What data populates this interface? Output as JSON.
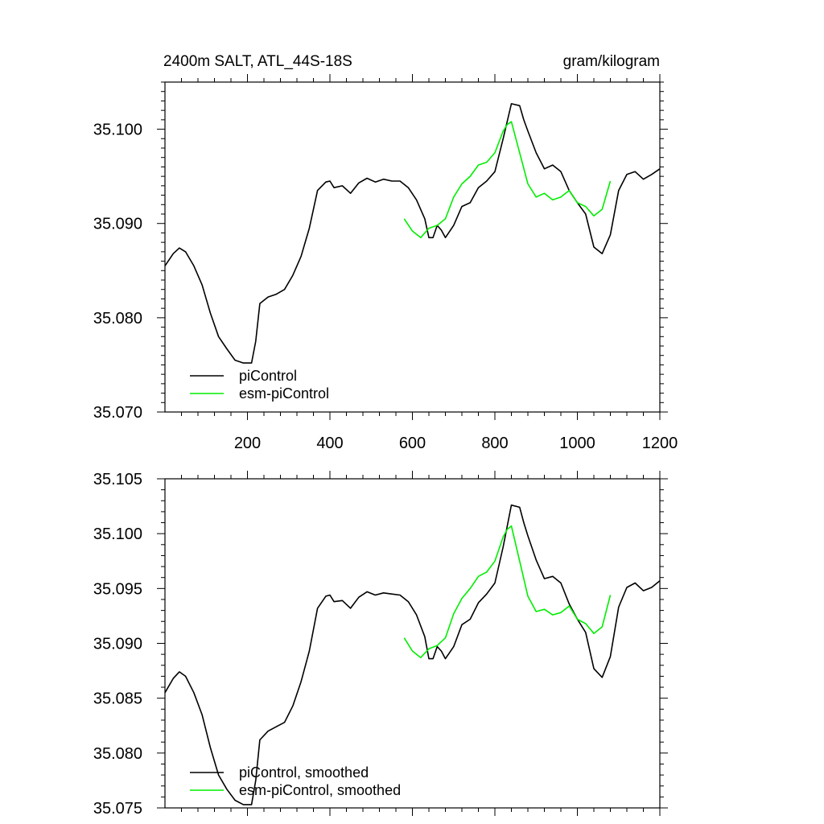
{
  "chart_data": [
    {
      "type": "line",
      "title": "2400m SALT, ATL_44S-18S",
      "units": "gram/kilogram",
      "xlim": [
        0,
        1200
      ],
      "ylim": [
        35.07,
        35.105
      ],
      "x_ticks": [
        200,
        400,
        600,
        800,
        1000,
        1200
      ],
      "x_tick_labels": [
        "200",
        "400",
        "600",
        "800",
        "1000",
        "1200"
      ],
      "y_ticks": [
        35.07,
        35.08,
        35.09,
        35.1
      ],
      "y_tick_labels": [
        "35.070",
        "35.080",
        "35.090",
        "35.100"
      ],
      "legend": [
        "piControl",
        "esm-piControl"
      ],
      "legend_position": "bottom-left",
      "series": [
        {
          "name": "piControl",
          "color": "#000000",
          "x": [
            0,
            20,
            35,
            50,
            70,
            90,
            110,
            130,
            150,
            170,
            190,
            210,
            220,
            230,
            250,
            270,
            290,
            310,
            330,
            350,
            370,
            390,
            400,
            410,
            430,
            450,
            470,
            490,
            510,
            530,
            550,
            570,
            590,
            610,
            630,
            640,
            650,
            660,
            670,
            680,
            700,
            720,
            740,
            760,
            780,
            800,
            820,
            840,
            860,
            870,
            880,
            900,
            920,
            940,
            960,
            980,
            1000,
            1020,
            1040,
            1060,
            1080,
            1100,
            1120,
            1140,
            1160,
            1180,
            1200
          ],
          "values": [
            35.0855,
            35.0868,
            35.0874,
            35.087,
            35.0855,
            35.0835,
            35.0805,
            35.078,
            35.0767,
            35.0755,
            35.0752,
            35.0752,
            35.0775,
            35.0815,
            35.0822,
            35.0825,
            35.083,
            35.0845,
            35.0865,
            35.0895,
            35.0935,
            35.0944,
            35.0945,
            35.0938,
            35.094,
            35.0932,
            35.0943,
            35.0948,
            35.0944,
            35.0947,
            35.0945,
            35.0945,
            35.0938,
            35.0925,
            35.0905,
            35.0885,
            35.0885,
            35.0898,
            35.0893,
            35.0885,
            35.0898,
            35.0918,
            35.0922,
            35.0938,
            35.0945,
            35.0955,
            35.099,
            35.1027,
            35.1025,
            35.101,
            35.0998,
            35.0975,
            35.0958,
            35.0962,
            35.0955,
            35.0935,
            35.0922,
            35.091,
            35.0875,
            35.0868,
            35.0888,
            35.0935,
            35.0952,
            35.0955,
            35.0947,
            35.0952,
            35.0958
          ]
        },
        {
          "name": "esm-piControl",
          "color": "#00ee00",
          "x": [
            580,
            600,
            620,
            640,
            660,
            680,
            700,
            720,
            740,
            760,
            780,
            800,
            820,
            830,
            840,
            860,
            880,
            900,
            920,
            940,
            960,
            980,
            1000,
            1020,
            1040,
            1060,
            1080
          ],
          "values": [
            35.0905,
            35.0892,
            35.0885,
            35.0895,
            35.0898,
            35.0905,
            35.0928,
            35.0942,
            35.095,
            35.0962,
            35.0965,
            35.0975,
            35.0998,
            35.1005,
            35.1008,
            35.0975,
            35.0942,
            35.0928,
            35.0932,
            35.0925,
            35.0928,
            35.0935,
            35.0922,
            35.0918,
            35.0908,
            35.0915,
            35.0945
          ]
        }
      ]
    },
    {
      "type": "line",
      "title": "",
      "xlim": [
        0,
        1200
      ],
      "ylim": [
        35.075,
        35.105
      ],
      "x_ticks": [
        200,
        400,
        600,
        800,
        1000,
        1200
      ],
      "y_ticks": [
        35.075,
        35.08,
        35.085,
        35.09,
        35.095,
        35.1,
        35.105
      ],
      "y_tick_labels": [
        "35.075",
        "35.080",
        "35.085",
        "35.090",
        "35.095",
        "35.100",
        "35.105"
      ],
      "legend": [
        "piControl, smoothed",
        "esm-piControl, smoothed"
      ],
      "legend_position": "bottom-left",
      "series": [
        {
          "name": "piControl, smoothed",
          "color": "#000000",
          "x": [
            0,
            20,
            35,
            50,
            70,
            90,
            110,
            130,
            150,
            170,
            190,
            210,
            220,
            230,
            250,
            270,
            290,
            310,
            330,
            350,
            370,
            390,
            400,
            410,
            430,
            450,
            470,
            490,
            510,
            530,
            550,
            570,
            590,
            610,
            630,
            640,
            650,
            660,
            670,
            680,
            700,
            720,
            740,
            760,
            780,
            800,
            820,
            840,
            860,
            870,
            880,
            900,
            920,
            940,
            960,
            980,
            1000,
            1020,
            1040,
            1060,
            1080,
            1100,
            1120,
            1140,
            1160,
            1180,
            1200
          ],
          "values": [
            35.0855,
            35.0868,
            35.0874,
            35.087,
            35.0855,
            35.0835,
            35.0805,
            35.078,
            35.0767,
            35.0757,
            35.0753,
            35.0753,
            35.0775,
            35.0812,
            35.082,
            35.0824,
            35.0828,
            35.0843,
            35.0865,
            35.0893,
            35.0932,
            35.0943,
            35.0944,
            35.0938,
            35.0939,
            35.0932,
            35.0942,
            35.0947,
            35.0944,
            35.0946,
            35.0945,
            35.0944,
            35.0938,
            35.0926,
            35.0906,
            35.0886,
            35.0886,
            35.0897,
            35.0893,
            35.0886,
            35.0897,
            35.0917,
            35.0922,
            35.0937,
            35.0945,
            35.0955,
            35.0988,
            35.1026,
            35.1024,
            35.101,
            35.0998,
            35.0976,
            35.0959,
            35.0961,
            35.0955,
            35.0936,
            35.0922,
            35.091,
            35.0877,
            35.0869,
            35.0888,
            35.0933,
            35.0951,
            35.0955,
            35.0948,
            35.0951,
            35.0957
          ]
        },
        {
          "name": "esm-piControl, smoothed",
          "color": "#00ee00",
          "x": [
            580,
            600,
            620,
            640,
            660,
            680,
            700,
            720,
            740,
            760,
            780,
            800,
            820,
            830,
            840,
            860,
            880,
            900,
            920,
            940,
            960,
            980,
            1000,
            1020,
            1040,
            1060,
            1080
          ],
          "values": [
            35.0905,
            35.0893,
            35.0887,
            35.0895,
            35.0898,
            35.0905,
            35.0927,
            35.0941,
            35.095,
            35.0961,
            35.0965,
            35.0975,
            35.0997,
            35.1004,
            35.1007,
            35.0975,
            35.0943,
            35.0929,
            35.0931,
            35.0926,
            35.0928,
            35.0934,
            35.0922,
            35.0918,
            35.0909,
            35.0915,
            35.0944
          ]
        }
      ]
    }
  ]
}
